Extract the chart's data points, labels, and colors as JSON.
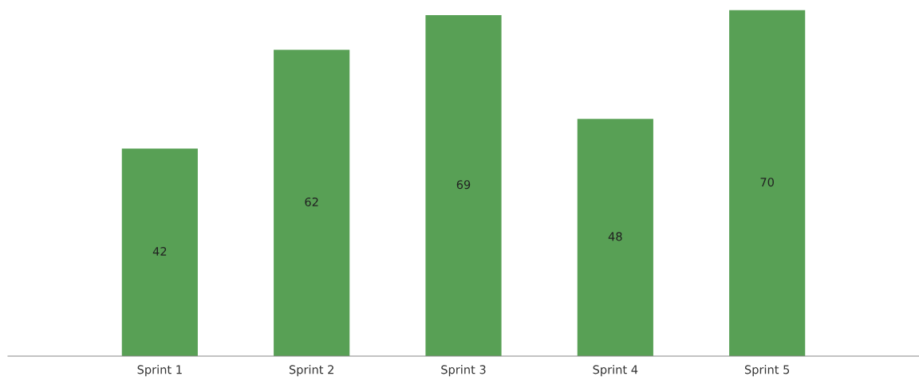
{
  "chart_data": {
    "type": "bar",
    "categories": [
      "Sprint 1",
      "Sprint 2",
      "Sprint 3",
      "Sprint 4",
      "Sprint 5"
    ],
    "values": [
      42,
      62,
      69,
      48,
      70
    ],
    "color": "#58a055",
    "data_labels": true,
    "grid": false,
    "legend": false
  }
}
